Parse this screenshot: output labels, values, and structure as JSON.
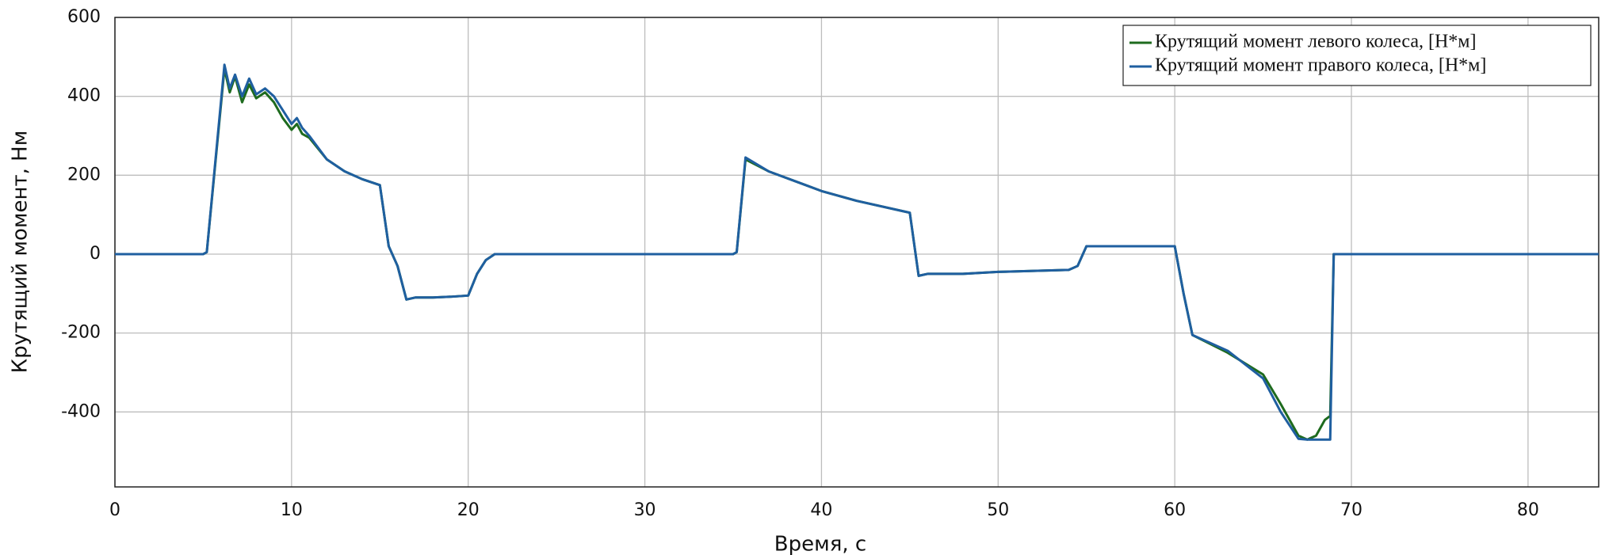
{
  "chart_data": {
    "type": "line",
    "x_label": "Время, с",
    "y_label": "Крутящий момент, Нм",
    "x": [
      0,
      5,
      5.2,
      6.2,
      6.5,
      6.8,
      7.2,
      7.6,
      8,
      8.5,
      9,
      9.5,
      10,
      10.3,
      10.6,
      11,
      12,
      13,
      14,
      15,
      15.5,
      16,
      16.5,
      17,
      18,
      19,
      20,
      20.5,
      21,
      21.5,
      35,
      35.2,
      35.7,
      37,
      40,
      42,
      45,
      45.5,
      46,
      48,
      50,
      54,
      54.5,
      55,
      60,
      60.5,
      61,
      63,
      65,
      66,
      67,
      67.5,
      68,
      68.5,
      68.8,
      69,
      84
    ],
    "series": [
      {
        "name": "Крутящий момент левого колеса, [Н*м]",
        "color": "#1e6b1e",
        "values": [
          0,
          0,
          5,
          470,
          410,
          450,
          385,
          430,
          395,
          410,
          385,
          345,
          315,
          330,
          305,
          295,
          240,
          210,
          190,
          175,
          20,
          -30,
          -115,
          -110,
          -110,
          -108,
          -105,
          -50,
          -15,
          0,
          0,
          5,
          240,
          210,
          160,
          135,
          105,
          -55,
          -50,
          -50,
          -45,
          -40,
          -30,
          20,
          20,
          -100,
          -205,
          -250,
          -305,
          -380,
          -460,
          -470,
          -460,
          -420,
          -410,
          0,
          0
        ]
      },
      {
        "name": "Крутящий момент правого колеса, [Н*м]",
        "color": "#1f5fa0",
        "values": [
          0,
          0,
          5,
          480,
          420,
          455,
          400,
          445,
          405,
          420,
          400,
          365,
          330,
          345,
          320,
          300,
          240,
          210,
          190,
          175,
          20,
          -30,
          -115,
          -110,
          -110,
          -108,
          -105,
          -50,
          -15,
          0,
          0,
          5,
          245,
          210,
          160,
          135,
          105,
          -55,
          -50,
          -50,
          -45,
          -40,
          -30,
          20,
          20,
          -100,
          -205,
          -245,
          -315,
          -400,
          -468,
          -470,
          -470,
          -470,
          -470,
          0,
          0
        ]
      }
    ],
    "xlim": [
      0,
      84
    ],
    "ylim": [
      -590,
      600
    ],
    "xticks": [
      0,
      10,
      20,
      30,
      40,
      50,
      60,
      70,
      80
    ],
    "yticks": [
      -400,
      -200,
      0,
      200,
      400,
      600
    ],
    "grid": true,
    "legend": "upper right"
  }
}
